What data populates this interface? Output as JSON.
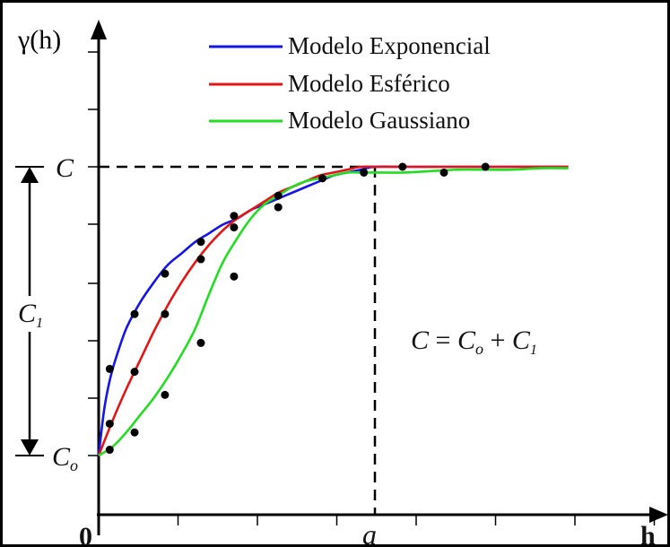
{
  "chart_data": {
    "type": "line",
    "ylabel": "γ(h)",
    "xlabel": "h",
    "x_tick_labels": {
      "origin": "0",
      "range": "a"
    },
    "y_tick_labels": {
      "sill": "C",
      "nugget": "C",
      "nugget_subscript": "o"
    },
    "sill_partial_label": "C",
    "sill_partial_subscript": "1",
    "equation": {
      "lhs": "C",
      "eq": "=",
      "c0": "C",
      "c0_sub": "o",
      "plus": "+",
      "c1": "C",
      "c1_sub": "1"
    },
    "legend_placement": "top-center",
    "grid": false,
    "xlim": [
      0,
      1.77
    ],
    "ylim": [
      -0.3,
      1.25
    ],
    "range_a": 1.0,
    "sill_C": 1.0,
    "nugget_C0": 0.0,
    "series": [
      {
        "name": "Modelo Exponencial",
        "color": "#1515e6",
        "x": [
          0,
          0.02,
          0.04,
          0.06,
          0.1,
          0.15,
          0.2,
          0.25,
          0.3,
          0.35,
          0.4,
          0.45,
          0.5,
          0.55,
          0.6,
          0.65,
          0.7,
          0.75,
          0.8,
          0.85,
          0.9,
          0.95,
          1.0,
          1.1,
          1.2,
          1.3,
          1.4,
          1.5,
          1.6,
          1.7
        ],
        "y": [
          0,
          0.16,
          0.26,
          0.33,
          0.44,
          0.53,
          0.6,
          0.66,
          0.7,
          0.74,
          0.77,
          0.8,
          0.82,
          0.85,
          0.87,
          0.89,
          0.91,
          0.93,
          0.95,
          0.97,
          0.98,
          0.99,
          1.0,
          1.0,
          1.0,
          1.0,
          1.0,
          1.0,
          1.0,
          1.0
        ]
      },
      {
        "name": "Modelo Esférico",
        "color": "#e61515",
        "x": [
          0,
          0.05,
          0.1,
          0.15,
          0.2,
          0.25,
          0.3,
          0.35,
          0.4,
          0.45,
          0.5,
          0.55,
          0.6,
          0.65,
          0.7,
          0.75,
          0.8,
          0.85,
          0.9,
          0.95,
          1.0,
          1.1,
          1.2,
          1.3,
          1.4,
          1.5,
          1.6,
          1.7
        ],
        "y": [
          0,
          0.12,
          0.23,
          0.33,
          0.43,
          0.52,
          0.6,
          0.67,
          0.73,
          0.78,
          0.82,
          0.85,
          0.88,
          0.91,
          0.93,
          0.95,
          0.97,
          0.98,
          0.99,
          1.0,
          1.0,
          1.0,
          1.0,
          1.0,
          1.0,
          1.0,
          1.0,
          1.0
        ]
      },
      {
        "name": "Modelo Gaussiano",
        "color": "#22dd22",
        "x": [
          0,
          0.05,
          0.1,
          0.15,
          0.2,
          0.25,
          0.3,
          0.35,
          0.4,
          0.45,
          0.5,
          0.55,
          0.6,
          0.65,
          0.7,
          0.75,
          0.8,
          0.85,
          0.9,
          0.95,
          1.0,
          1.1,
          1.2,
          1.3,
          1.4,
          1.5,
          1.6,
          1.7
        ],
        "y": [
          0,
          0.03,
          0.08,
          0.14,
          0.2,
          0.27,
          0.35,
          0.44,
          0.56,
          0.67,
          0.75,
          0.82,
          0.87,
          0.9,
          0.93,
          0.95,
          0.96,
          0.97,
          0.98,
          0.98,
          0.98,
          0.98,
          0.985,
          0.99,
          0.99,
          0.99,
          0.995,
          0.995
        ]
      }
    ],
    "sample_points": [
      {
        "x": 0.04,
        "y": 0.3
      },
      {
        "x": 0.13,
        "y": 0.49
      },
      {
        "x": 0.24,
        "y": 0.63
      },
      {
        "x": 0.37,
        "y": 0.74
      },
      {
        "x": 0.49,
        "y": 0.83
      },
      {
        "x": 0.65,
        "y": 0.9
      },
      {
        "x": 0.81,
        "y": 0.96
      },
      {
        "x": 0.13,
        "y": 0.29
      },
      {
        "x": 0.24,
        "y": 0.49
      },
      {
        "x": 0.37,
        "y": 0.68
      },
      {
        "x": 0.49,
        "y": 0.79
      },
      {
        "x": 0.65,
        "y": 0.86
      },
      {
        "x": 0.04,
        "y": 0.11
      },
      {
        "x": 0.04,
        "y": 0.02
      },
      {
        "x": 0.13,
        "y": 0.08
      },
      {
        "x": 0.24,
        "y": 0.21
      },
      {
        "x": 0.37,
        "y": 0.39
      },
      {
        "x": 0.49,
        "y": 0.62
      },
      {
        "x": 0.96,
        "y": 0.98
      },
      {
        "x": 1.1,
        "y": 1.0
      },
      {
        "x": 1.25,
        "y": 0.98
      },
      {
        "x": 1.4,
        "y": 1.0
      }
    ]
  }
}
